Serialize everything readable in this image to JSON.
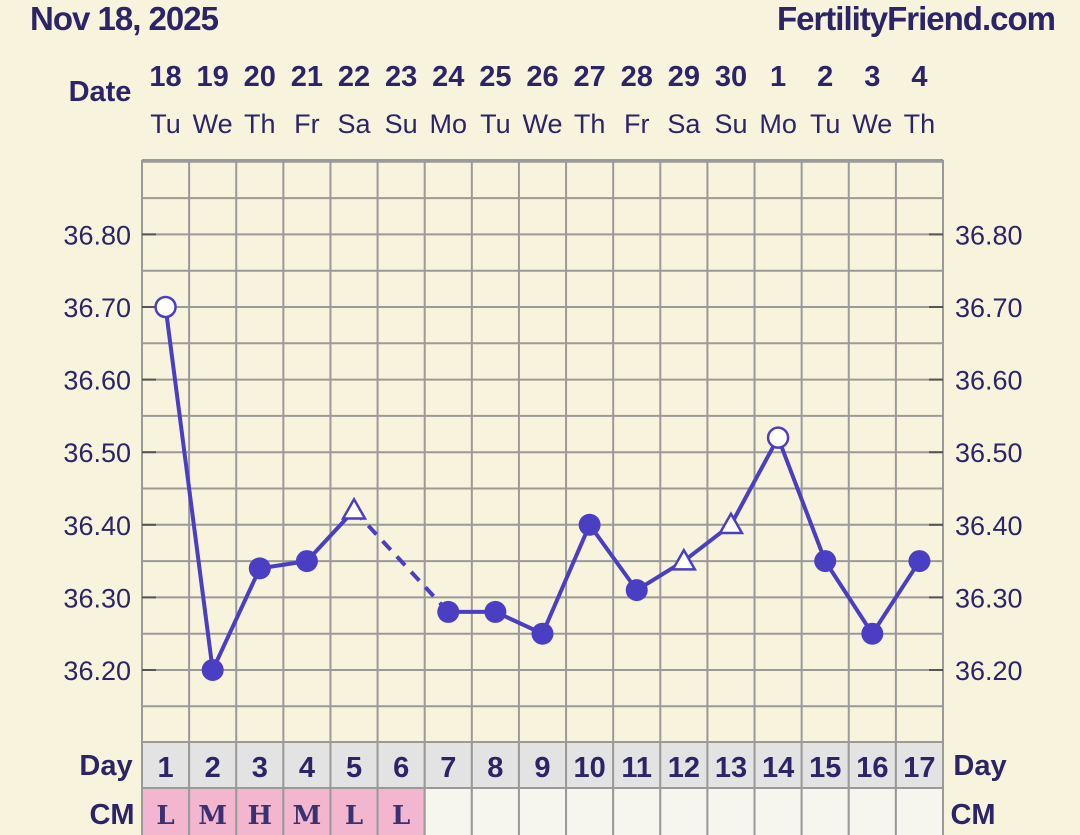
{
  "header": {
    "date": "Nov 18, 2025",
    "site": "FertilityFriend.com"
  },
  "labels": {
    "date_row": "Date",
    "day_row": "Day",
    "cm_row": "CM"
  },
  "columns": [
    {
      "date": "18",
      "dow": "Tu",
      "day": "1",
      "cm": "L"
    },
    {
      "date": "19",
      "dow": "We",
      "day": "2",
      "cm": "M"
    },
    {
      "date": "20",
      "dow": "Th",
      "day": "3",
      "cm": "H"
    },
    {
      "date": "21",
      "dow": "Fr",
      "day": "4",
      "cm": "M"
    },
    {
      "date": "22",
      "dow": "Sa",
      "day": "5",
      "cm": "L"
    },
    {
      "date": "23",
      "dow": "Su",
      "day": "6",
      "cm": "L"
    },
    {
      "date": "24",
      "dow": "Mo",
      "day": "7",
      "cm": ""
    },
    {
      "date": "25",
      "dow": "Tu",
      "day": "8",
      "cm": ""
    },
    {
      "date": "26",
      "dow": "We",
      "day": "9",
      "cm": ""
    },
    {
      "date": "27",
      "dow": "Th",
      "day": "10",
      "cm": ""
    },
    {
      "date": "28",
      "dow": "Fr",
      "day": "11",
      "cm": ""
    },
    {
      "date": "29",
      "dow": "Sa",
      "day": "12",
      "cm": ""
    },
    {
      "date": "30",
      "dow": "Su",
      "day": "13",
      "cm": ""
    },
    {
      "date": "1",
      "dow": "Mo",
      "day": "14",
      "cm": ""
    },
    {
      "date": "2",
      "dow": "Tu",
      "day": "15",
      "cm": ""
    },
    {
      "date": "3",
      "dow": "We",
      "day": "16",
      "cm": ""
    },
    {
      "date": "4",
      "dow": "Th",
      "day": "17",
      "cm": ""
    }
  ],
  "colors": {
    "background": "#f8f3dc",
    "line": "#4a3fc2",
    "grid": "#9a9a9a",
    "text": "#2b2466",
    "day_row_bg": "#e3e3e3",
    "cm_fill": "#f2b6cf",
    "cm_empty": "#f7f6ee"
  },
  "chart_data": {
    "type": "line",
    "ylabels": [
      "36.80",
      "36.70",
      "36.60",
      "36.50",
      "36.40",
      "36.30",
      "36.20"
    ],
    "ylim": [
      36.12,
      36.89
    ],
    "grid": true,
    "x": [
      1,
      2,
      3,
      4,
      5,
      6,
      7,
      8,
      9,
      10,
      11,
      12,
      13,
      14,
      15,
      16,
      17
    ],
    "y": [
      36.7,
      36.2,
      36.34,
      36.35,
      36.42,
      null,
      36.28,
      36.28,
      36.25,
      36.4,
      36.31,
      36.35,
      36.4,
      36.52,
      36.35,
      36.25,
      36.35
    ],
    "marker": [
      "open-circle",
      "filled-circle",
      "filled-circle",
      "filled-circle",
      "open-triangle",
      null,
      "filled-circle",
      "filled-circle",
      "filled-circle",
      "filled-circle",
      "filled-circle",
      "open-triangle",
      "open-triangle",
      "open-circle",
      "filled-circle",
      "filled-circle",
      "filled-circle"
    ],
    "dashed_gap": {
      "from_day": 5,
      "to_day": 7
    }
  }
}
